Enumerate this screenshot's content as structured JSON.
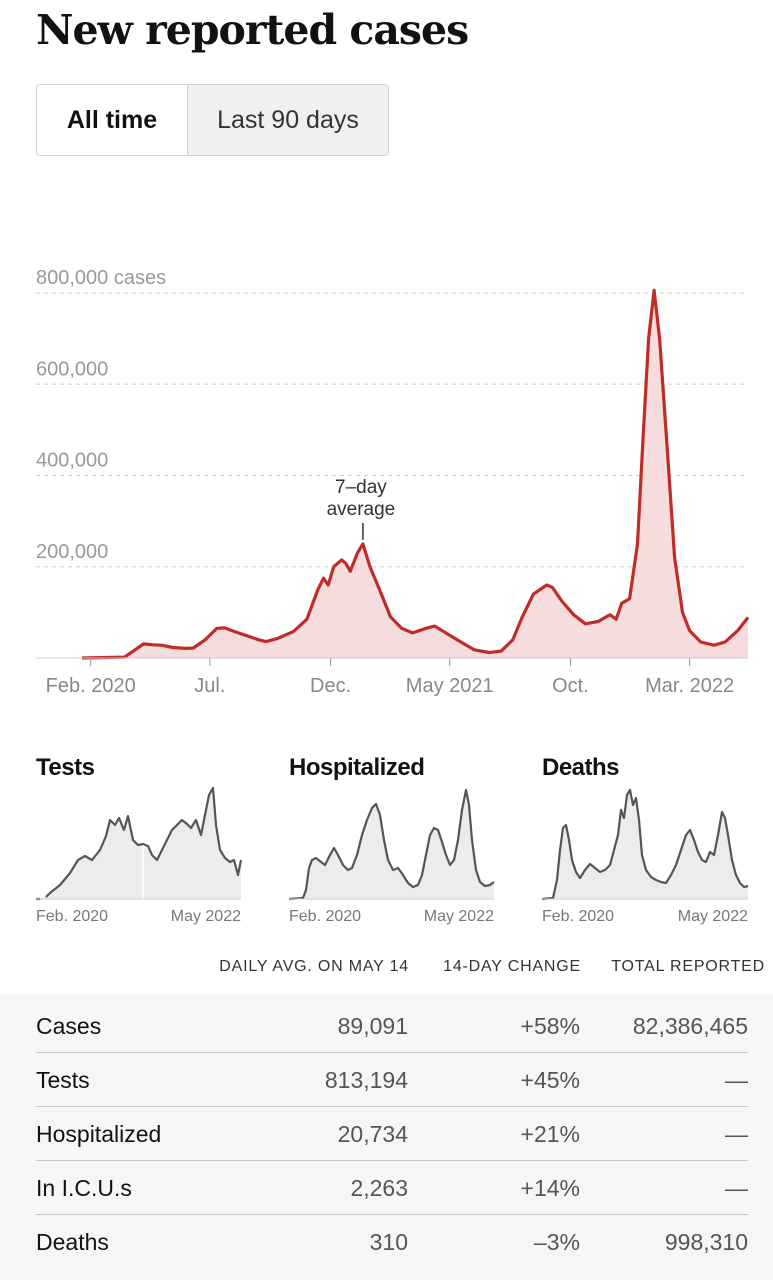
{
  "title": "New reported cases",
  "toggle": {
    "active": "All time",
    "inactive": "Last 90 days"
  },
  "colors": {
    "accent": "#bf2d27",
    "area": "#f6dcdc",
    "mini_line": "#555555",
    "mini_area": "#ececec"
  },
  "chart_data": {
    "type": "area",
    "title": "New reported cases",
    "ylabel": "cases",
    "ylim": [
      0,
      800000
    ],
    "y_ticks": [
      {
        "value": 800000,
        "label": "800,000 cases"
      },
      {
        "value": 600000,
        "label": "600,000"
      },
      {
        "value": 400000,
        "label": "400,000"
      },
      {
        "value": 200000,
        "label": "200,000"
      }
    ],
    "x_ticks": [
      {
        "date": "2020-02-01",
        "label": "Feb. 2020"
      },
      {
        "date": "2020-07-01",
        "label": "Jul."
      },
      {
        "date": "2020-12-01",
        "label": "Dec."
      },
      {
        "date": "2021-05-01",
        "label": "May 2021"
      },
      {
        "date": "2021-10-01",
        "label": "Oct."
      },
      {
        "date": "2022-03-01",
        "label": "Mar. 2022"
      }
    ],
    "xlim": [
      "2020-01-21",
      "2022-05-14"
    ],
    "annotation": {
      "line1": "7–day",
      "line2": "average",
      "date": "2021-01-11",
      "value": 250000
    },
    "series": [
      {
        "values": [
          [
            "2020-01-21",
            0
          ],
          [
            "2020-03-15",
            2000
          ],
          [
            "2020-04-08",
            31000
          ],
          [
            "2020-04-20",
            29000
          ],
          [
            "2020-05-01",
            28000
          ],
          [
            "2020-05-15",
            23000
          ],
          [
            "2020-06-01",
            21000
          ],
          [
            "2020-06-10",
            22000
          ],
          [
            "2020-06-25",
            40000
          ],
          [
            "2020-07-10",
            65000
          ],
          [
            "2020-07-20",
            66000
          ],
          [
            "2020-08-01",
            58000
          ],
          [
            "2020-08-15",
            50000
          ],
          [
            "2020-09-01",
            40000
          ],
          [
            "2020-09-10",
            36000
          ],
          [
            "2020-09-25",
            43000
          ],
          [
            "2020-10-15",
            58000
          ],
          [
            "2020-11-01",
            85000
          ],
          [
            "2020-11-15",
            150000
          ],
          [
            "2020-11-22",
            175000
          ],
          [
            "2020-11-28",
            160000
          ],
          [
            "2020-12-05",
            200000
          ],
          [
            "2020-12-15",
            215000
          ],
          [
            "2020-12-20",
            208000
          ],
          [
            "2020-12-26",
            190000
          ],
          [
            "2021-01-04",
            230000
          ],
          [
            "2021-01-11",
            250000
          ],
          [
            "2021-01-20",
            200000
          ],
          [
            "2021-02-01",
            150000
          ],
          [
            "2021-02-15",
            90000
          ],
          [
            "2021-03-01",
            65000
          ],
          [
            "2021-03-15",
            55000
          ],
          [
            "2021-04-01",
            65000
          ],
          [
            "2021-04-12",
            70000
          ],
          [
            "2021-05-01",
            50000
          ],
          [
            "2021-05-15",
            35000
          ],
          [
            "2021-06-01",
            18000
          ],
          [
            "2021-06-20",
            12000
          ],
          [
            "2021-07-05",
            15000
          ],
          [
            "2021-07-20",
            40000
          ],
          [
            "2021-08-01",
            90000
          ],
          [
            "2021-08-15",
            140000
          ],
          [
            "2021-09-01",
            160000
          ],
          [
            "2021-09-08",
            155000
          ],
          [
            "2021-09-20",
            125000
          ],
          [
            "2021-10-05",
            95000
          ],
          [
            "2021-10-20",
            75000
          ],
          [
            "2021-11-05",
            80000
          ],
          [
            "2021-11-20",
            95000
          ],
          [
            "2021-11-28",
            85000
          ],
          [
            "2021-12-05",
            120000
          ],
          [
            "2021-12-15",
            130000
          ],
          [
            "2021-12-25",
            250000
          ],
          [
            "2022-01-01",
            480000
          ],
          [
            "2022-01-08",
            700000
          ],
          [
            "2022-01-15",
            806000
          ],
          [
            "2022-01-22",
            700000
          ],
          [
            "2022-02-01",
            450000
          ],
          [
            "2022-02-10",
            220000
          ],
          [
            "2022-02-20",
            100000
          ],
          [
            "2022-03-01",
            60000
          ],
          [
            "2022-03-15",
            35000
          ],
          [
            "2022-04-01",
            28000
          ],
          [
            "2022-04-15",
            35000
          ],
          [
            "2022-05-01",
            60000
          ],
          [
            "2022-05-14",
            89091
          ]
        ]
      }
    ]
  },
  "mini_charts": [
    {
      "title": "Tests",
      "start_label": "Feb. 2020",
      "end_label": "May 2022"
    },
    {
      "title": "Hospitalized",
      "start_label": "Feb. 2020",
      "end_label": "May 2022"
    },
    {
      "title": "Deaths",
      "start_label": "Feb. 2020",
      "end_label": "May 2022"
    }
  ],
  "table": {
    "headers": [
      "DAILY AVG. ON MAY 14",
      "14-DAY CHANGE",
      "TOTAL REPORTED"
    ],
    "rows": [
      {
        "label": "Cases",
        "avg": "89,091",
        "change": "+58%",
        "total": "82,386,465"
      },
      {
        "label": "Tests",
        "avg": "813,194",
        "change": "+45%",
        "total": "—"
      },
      {
        "label": "Hospitalized",
        "avg": "20,734",
        "change": "+21%",
        "total": "—"
      },
      {
        "label": "In I.C.U.s",
        "avg": "2,263",
        "change": "+14%",
        "total": "—"
      },
      {
        "label": "Deaths",
        "avg": "310",
        "change": "–3%",
        "total": "998,310"
      }
    ]
  }
}
